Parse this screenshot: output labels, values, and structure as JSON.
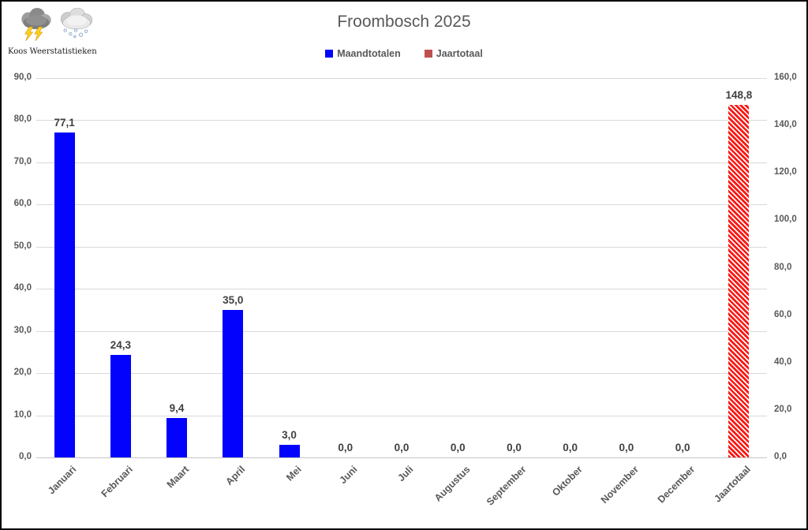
{
  "branding": {
    "name": "Koos Weerstatistieken",
    "icons": [
      "storm-cloud-icon",
      "snow-cloud-icon"
    ]
  },
  "chart_data": {
    "type": "bar",
    "title": "Froombosch 2025",
    "categories": [
      "Januari",
      "Februari",
      "Maart",
      "April",
      "Mei",
      "Juni",
      "Juli",
      "Augustus",
      "September",
      "Oktober",
      "November",
      "December",
      "Jaartotaal"
    ],
    "series": [
      {
        "name": "Maandtotalen",
        "axis": "left",
        "color": "#0202fd",
        "pattern": "solid",
        "values": [
          77.1,
          24.3,
          9.4,
          35.0,
          3.0,
          0.0,
          0.0,
          0.0,
          0.0,
          0.0,
          0.0,
          0.0,
          null
        ]
      },
      {
        "name": "Jaartotaal",
        "axis": "right",
        "color": "#c0504d",
        "pattern": "diagonal-hatch-red-white",
        "values": [
          null,
          null,
          null,
          null,
          null,
          null,
          null,
          null,
          null,
          null,
          null,
          null,
          148.8
        ]
      }
    ],
    "value_labels": [
      "77,1",
      "24,3",
      "9,4",
      "35,0",
      "3,0",
      "0,0",
      "0,0",
      "0,0",
      "0,0",
      "0,0",
      "0,0",
      "0,0",
      "148,8"
    ],
    "left_axis": {
      "min": 0,
      "max": 90,
      "step": 10,
      "tick_labels": [
        "90,0",
        "80,0",
        "70,0",
        "60,0",
        "50,0",
        "40,0",
        "30,0",
        "20,0",
        "10,0",
        "0,0"
      ]
    },
    "right_axis": {
      "min": 0,
      "max": 160,
      "step": 20,
      "tick_labels": [
        "160,0",
        "140,0",
        "120,0",
        "100,0",
        "80,0",
        "60,0",
        "40,0",
        "20,0",
        "0,0"
      ]
    },
    "legend": [
      {
        "label": "Maandtotalen",
        "color": "#0202fd"
      },
      {
        "label": "Jaartotaal",
        "color": "#c0504d"
      }
    ],
    "grid": true,
    "legend_position": "top"
  },
  "colors": {
    "bar_blue": "#0202fd",
    "hatch_red": "#fb1712",
    "legend_red": "#c0504d",
    "gridline": "#d9d9d9",
    "axis_text": "#595959",
    "value_text": "#404040",
    "title_text": "#595959"
  }
}
